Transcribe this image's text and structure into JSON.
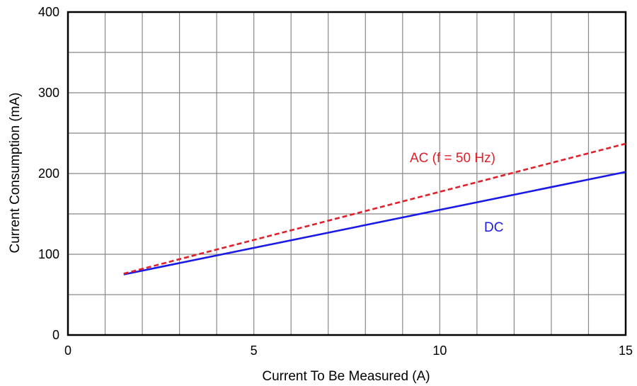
{
  "chart_data": {
    "type": "line",
    "title": "",
    "xlabel": "Current To Be Measured (A)",
    "ylabel": "Current Consumption (mA)",
    "xlim": [
      0,
      15
    ],
    "ylim": [
      0,
      400
    ],
    "x_ticks": [
      "0",
      "5",
      "10",
      "15"
    ],
    "y_ticks": [
      "0",
      "100",
      "200",
      "300",
      "400"
    ],
    "grid": true,
    "series": [
      {
        "name": "DC",
        "color": "#1a1ae6",
        "style": "solid",
        "x": [
          1.5,
          15
        ],
        "values": [
          75,
          202
        ]
      },
      {
        "name": "AC (f = 50 Hz)",
        "color": "#e0202a",
        "style": "dashed",
        "x": [
          1.5,
          15
        ],
        "values": [
          76,
          237
        ]
      }
    ]
  }
}
